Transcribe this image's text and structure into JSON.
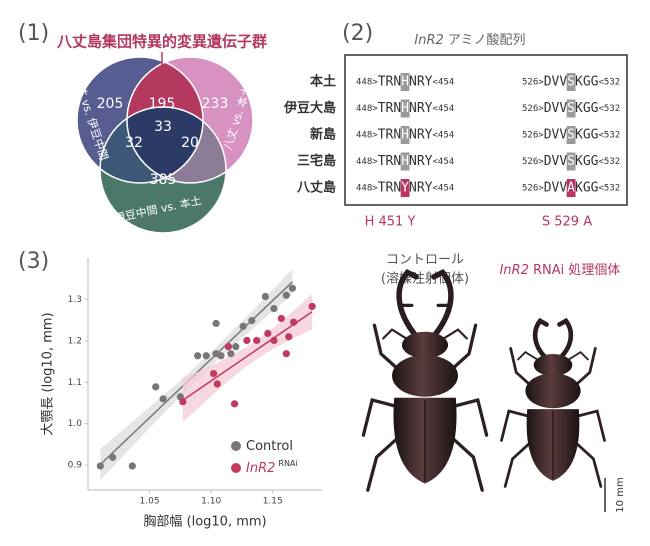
{
  "figure": {
    "panel_labels": [
      "(1)",
      "(2)",
      "(3)"
    ]
  },
  "venn": {
    "title": "八丈島集団特異的変異遺伝子群",
    "sets": [
      "八丈 vs. 伊豆中間",
      "八丈 vs. 本土",
      "伊豆中間 vs. 本土"
    ],
    "counts": {
      "left_only": 205,
      "left_right": 195,
      "right_only": 233,
      "all": 33,
      "left_bottom": 32,
      "right_bottom": 20,
      "bottom_only": 385
    }
  },
  "sequences": {
    "title_gene": "InR2",
    "title_rest": "アミノ酸配列",
    "rows": [
      {
        "label": "本土",
        "highlight": "#9a9a9a",
        "segments": [
          {
            "start": "448>",
            "pre": "TRN",
            "site": "H",
            "post": "NRY",
            "end": "<454"
          },
          {
            "start": "526>",
            "pre": "DVV",
            "site": "S",
            "post": "KGG",
            "end": "<532"
          }
        ]
      },
      {
        "label": "伊豆大島",
        "highlight": "#9a9a9a",
        "segments": [
          {
            "start": "448>",
            "pre": "TRN",
            "site": "H",
            "post": "NRY",
            "end": "<454"
          },
          {
            "start": "526>",
            "pre": "DVV",
            "site": "S",
            "post": "KGG",
            "end": "<532"
          }
        ]
      },
      {
        "label": "新島",
        "highlight": "#9a9a9a",
        "segments": [
          {
            "start": "448>",
            "pre": "TRN",
            "site": "H",
            "post": "NRY",
            "end": "<454"
          },
          {
            "start": "526>",
            "pre": "DVV",
            "site": "S",
            "post": "KGG",
            "end": "<532"
          }
        ]
      },
      {
        "label": "三宅島",
        "highlight": "#9a9a9a",
        "segments": [
          {
            "start": "448>",
            "pre": "TRN",
            "site": "H",
            "post": "NRY",
            "end": "<454"
          },
          {
            "start": "526>",
            "pre": "DVV",
            "site": "S",
            "post": "KGG",
            "end": "<532"
          }
        ]
      },
      {
        "label": "八丈島",
        "highlight": "#b8365f",
        "segments": [
          {
            "start": "448>",
            "pre": "TRN",
            "site": "Y",
            "post": "NRY",
            "end": "<454"
          },
          {
            "start": "526>",
            "pre": "DVV",
            "site": "A",
            "post": "KGG",
            "end": "<532"
          }
        ]
      }
    ],
    "mutations": [
      "H 451 Y",
      "S 529 A"
    ]
  },
  "photos": {
    "control_label": "コントロール",
    "control_sub": "(溶媒注射個体)",
    "treated_gene": "InR2",
    "treated_rest": "RNAi 処理個体",
    "scale": "10 mm"
  },
  "chart_data": {
    "type": "scatter",
    "x_label": "胸部幅  (log10, mm)",
    "y_label": "大顎長  (log10, mm)",
    "xlim": [
      1.0,
      1.19
    ],
    "ylim": [
      0.84,
      1.4
    ],
    "xticks": [
      1.05,
      {
        "value": 1.1,
        "label": "1.10"
      },
      1.15
    ],
    "yticks": [
      0.9,
      {
        "value": 1.0,
        "label": "1.0"
      },
      1.1,
      1.2,
      1.3
    ],
    "trend_lines": true,
    "series": [
      {
        "name": "Control",
        "color": "#777777",
        "band_color": "#dcdcdc",
        "x": [
          1.01,
          1.02,
          1.036,
          1.055,
          1.061,
          1.075,
          1.089,
          1.096,
          1.104,
          1.104,
          1.108,
          1.116,
          1.12,
          1.126,
          1.133,
          1.144,
          1.151,
          1.161,
          1.166
        ],
        "values": [
          0.898,
          0.919,
          0.898,
          1.089,
          1.06,
          1.065,
          1.164,
          1.164,
          1.242,
          1.169,
          1.164,
          1.169,
          1.186,
          1.235,
          1.249,
          1.307,
          1.278,
          1.31,
          1.327
        ]
      },
      {
        "name": "InR2",
        "name_superscript": "RNAi",
        "color": "#c0395f",
        "band_color": "#f4c9d5",
        "x": [
          1.077,
          1.102,
          1.105,
          1.114,
          1.119,
          1.129,
          1.137,
          1.146,
          1.151,
          1.157,
          1.161,
          1.163,
          1.167,
          1.182
        ],
        "values": [
          1.053,
          1.121,
          1.096,
          1.186,
          1.048,
          1.201,
          1.201,
          1.218,
          1.201,
          1.254,
          1.169,
          1.21,
          1.245,
          1.283
        ]
      }
    ]
  }
}
